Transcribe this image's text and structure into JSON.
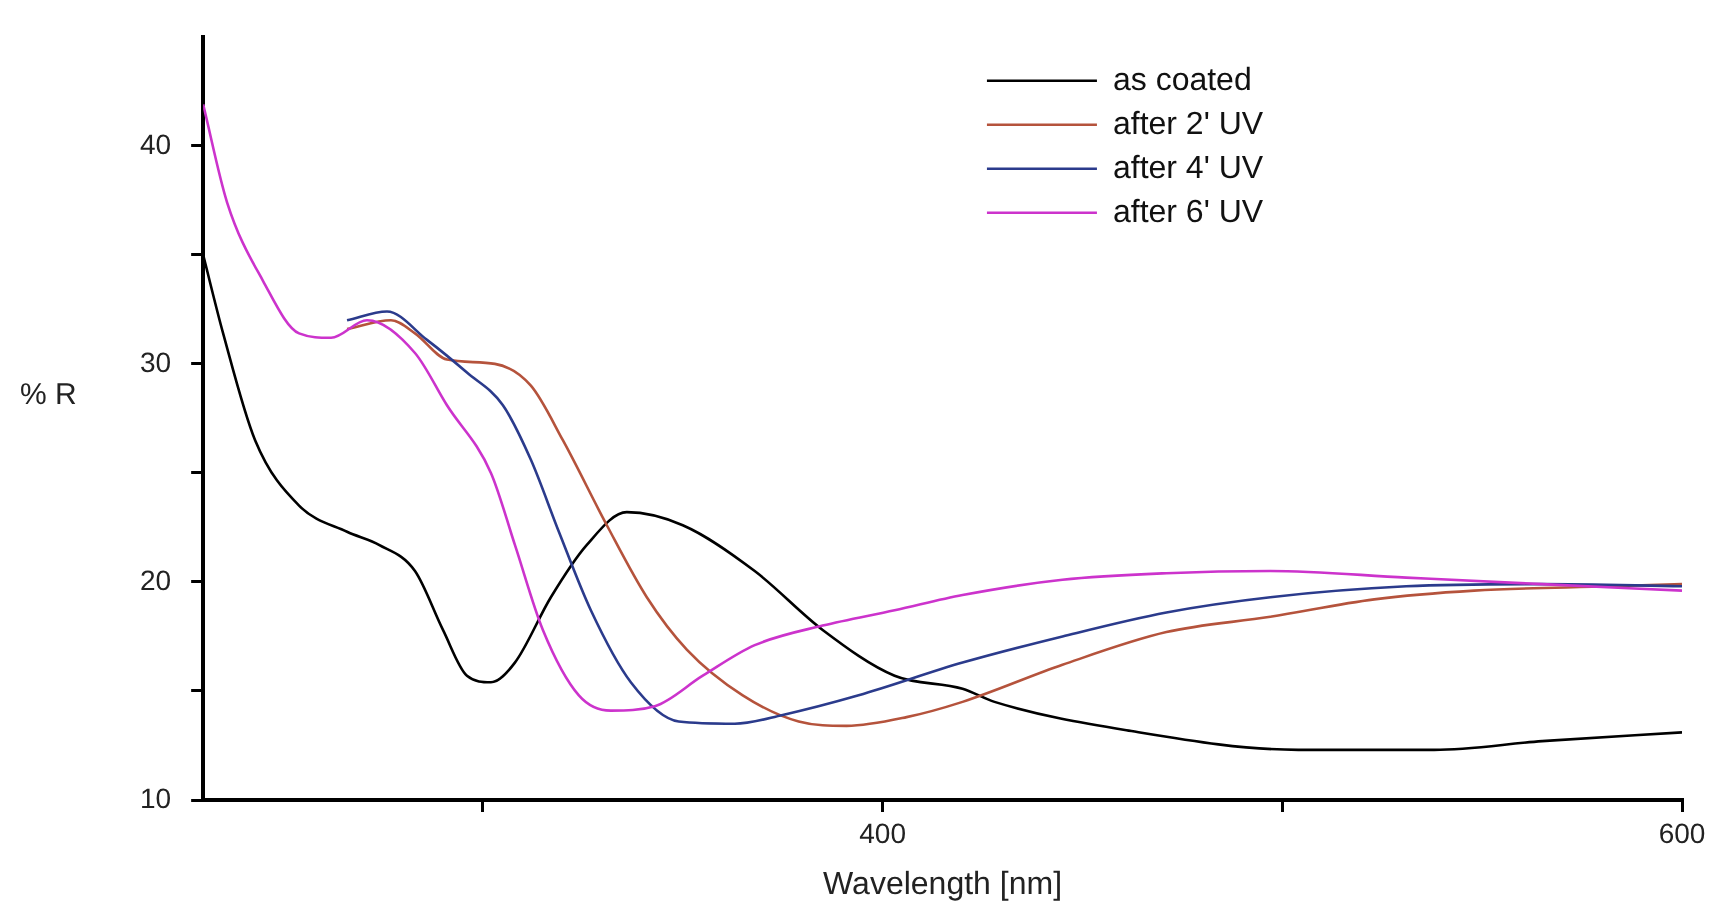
{
  "chart_data": {
    "type": "line",
    "xlabel": "Wavelength [nm]",
    "ylabel": "% R",
    "xlim": [
      230,
      600
    ],
    "ylim": [
      10,
      45
    ],
    "xticks": [
      {
        "value": 300,
        "label": null
      },
      400,
      {
        "value": 500,
        "label": null
      },
      600
    ],
    "yticks": [
      10,
      {
        "value": 15,
        "label": null
      },
      20,
      {
        "value": 25,
        "label": null
      },
      30,
      {
        "value": 35,
        "label": null
      },
      40
    ],
    "grid": false,
    "legend": "top right",
    "marker": "none",
    "line_style": "solid",
    "series": [
      {
        "name": "as coated",
        "color": "#000000",
        "x": [
          230,
          235,
          243,
          254,
          266,
          274,
          283,
          290,
          296,
          302,
          308,
          317,
          326,
          336,
          350,
          368,
          385,
          403,
          420,
          428,
          461,
          504,
          538,
          565,
          600
        ],
        "values": [
          35,
          31.4,
          26.5,
          23.5,
          22.3,
          21.7,
          20.5,
          17.8,
          15.7,
          15.4,
          16.3,
          19.3,
          21.7,
          23.2,
          22.6,
          20.5,
          17.8,
          15.7,
          15.1,
          14.5,
          13.2,
          12.3,
          12.3,
          12.7,
          13.1
        ]
      },
      {
        "name": "after 2' UV",
        "color": "#b5533c",
        "x": [
          266,
          277,
          283,
          291,
          303,
          312,
          320,
          331,
          341,
          351,
          365,
          379,
          391,
          406,
          420,
          445,
          471,
          497,
          523,
          548,
          582,
          600
        ],
        "values": [
          31.6,
          32,
          31.4,
          30.2,
          30,
          29,
          26.5,
          22.6,
          19.3,
          16.9,
          14.8,
          13.6,
          13.4,
          13.8,
          14.5,
          16.2,
          17.7,
          18.4,
          19.2,
          19.6,
          19.8,
          19.9
        ]
      },
      {
        "name": "after 4' UV",
        "color": "#2b3b8c",
        "x": [
          266,
          276,
          286,
          296,
          305,
          312,
          319,
          327,
          337,
          349,
          363,
          375,
          394,
          420,
          445,
          471,
          497,
          531,
          565,
          600
        ],
        "values": [
          32,
          32.4,
          31.1,
          29.6,
          28.1,
          25.6,
          22.3,
          18.7,
          15.4,
          13.6,
          13.5,
          13.9,
          14.8,
          16.3,
          17.5,
          18.6,
          19.3,
          19.8,
          19.9,
          19.8
        ]
      },
      {
        "name": "after 6' UV",
        "color": "#cc33cc",
        "x": [
          230,
          236,
          245,
          254,
          262,
          271,
          283,
          291,
          302,
          308,
          315,
          324,
          332,
          343,
          355,
          368,
          385,
          403,
          420,
          445,
          471,
          497,
          531,
          565,
          600
        ],
        "values": [
          41.9,
          37.4,
          33.8,
          31.4,
          31.2,
          32,
          30.5,
          28.1,
          25,
          21.7,
          17.8,
          14.8,
          14.1,
          14.3,
          15.7,
          17.1,
          18,
          18.7,
          19.4,
          20.1,
          20.4,
          20.5,
          20.2,
          19.9,
          19.6
        ]
      }
    ]
  }
}
